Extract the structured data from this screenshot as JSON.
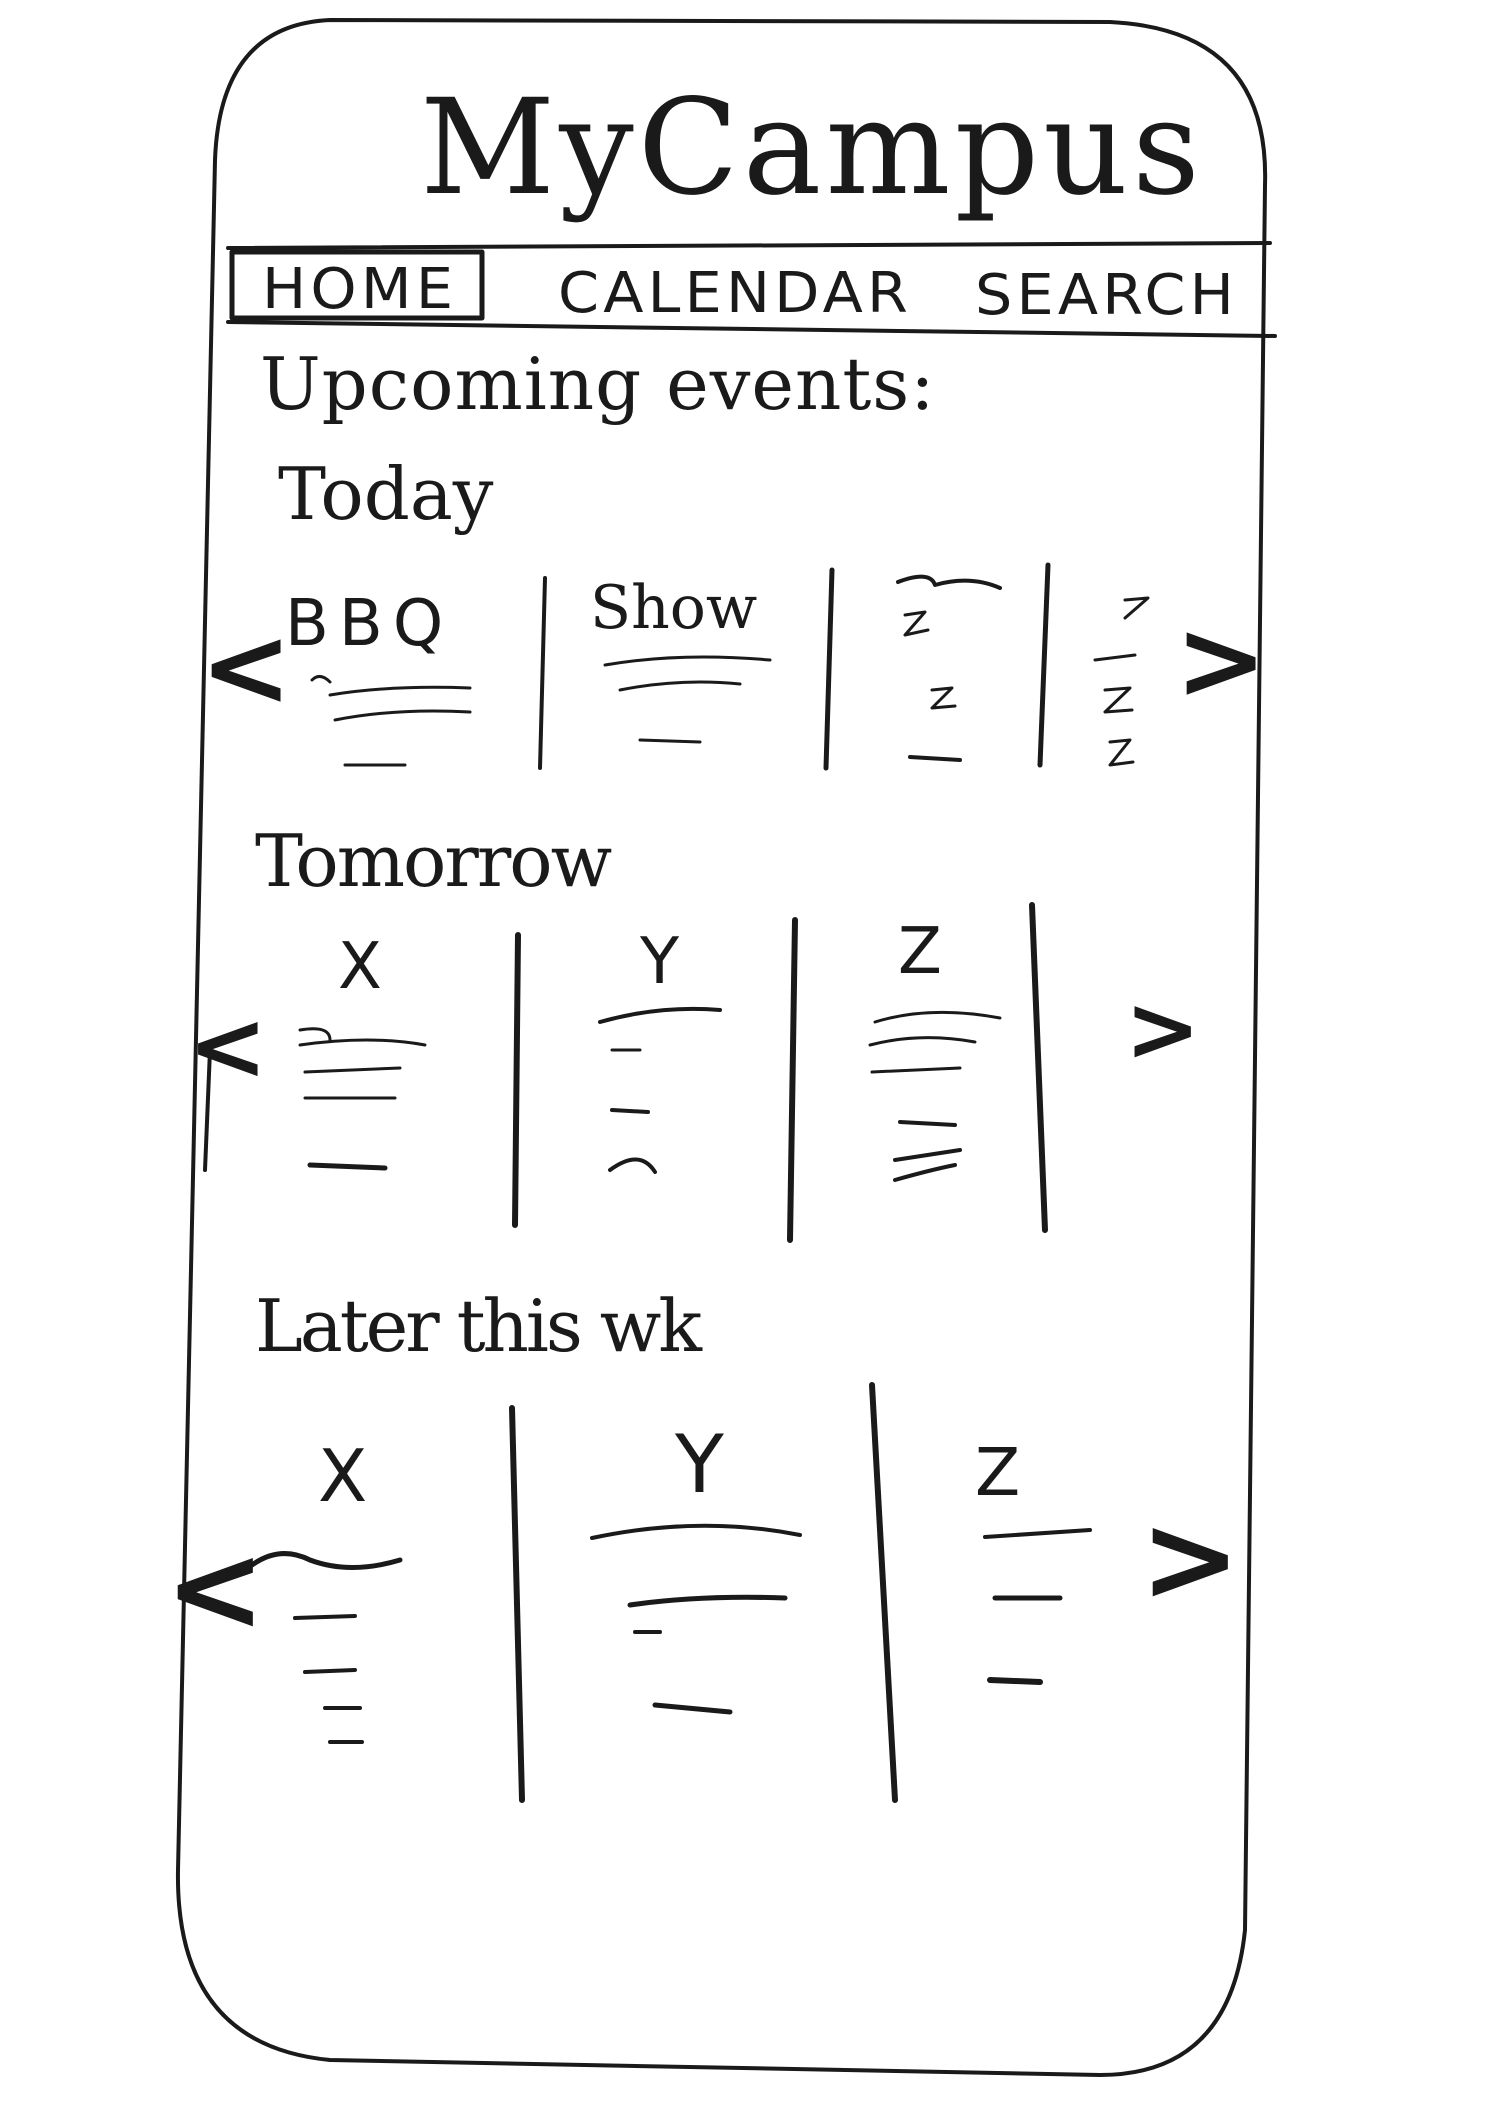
{
  "app": {
    "title": "MyCampus"
  },
  "nav": {
    "tabs": [
      {
        "label": "HOME"
      },
      {
        "label": "CALENDAR"
      },
      {
        "label": "SEARCH"
      }
    ]
  },
  "main": {
    "heading": "Upcoming events:",
    "sections": [
      {
        "label": "Today",
        "events": [
          {
            "title": "BBQ"
          },
          {
            "title": "Show"
          },
          {
            "title": ""
          },
          {
            "title": ""
          }
        ]
      },
      {
        "label": "Tomorrow",
        "events": [
          {
            "title": "X"
          },
          {
            "title": "Y"
          },
          {
            "title": "Z"
          }
        ]
      },
      {
        "label": "Later this wk",
        "events": [
          {
            "title": "X"
          },
          {
            "title": "Y"
          },
          {
            "title": "Z"
          }
        ]
      }
    ]
  },
  "icons": {
    "prev": "chevron-left-icon",
    "next": "chevron-right-icon"
  }
}
